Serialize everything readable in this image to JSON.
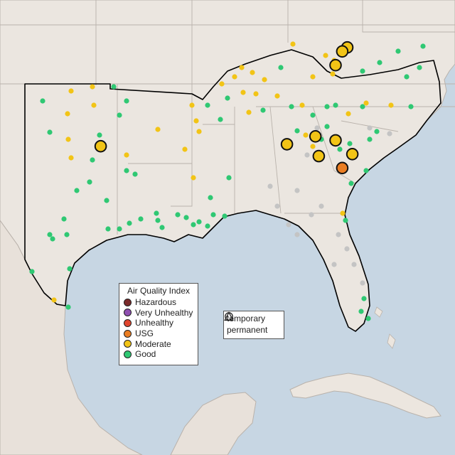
{
  "colors": {
    "water": "#c7d6e3",
    "land": "#ebe6e0",
    "land_border": "#b9b2ab",
    "region_outline": "#000000",
    "mexico_land": "#e8e1da",
    "cuba_land": "#ece6df"
  },
  "legend": {
    "title": "Air Quality Index",
    "categories": [
      {
        "label": "Hazardous",
        "color": "#7a2a2a"
      },
      {
        "label": "Very Unhealthy",
        "color": "#8e4fb0"
      },
      {
        "label": "Unhealthy",
        "color": "#e0452e"
      },
      {
        "label": "USG",
        "color": "#ea7d22"
      },
      {
        "label": "Moderate",
        "color": "#f2c416"
      },
      {
        "label": "Good",
        "color": "#2fc873"
      }
    ]
  },
  "monitor_legend": {
    "items": [
      {
        "label": "temporary",
        "shape": "circle"
      },
      {
        "label": "permanent",
        "shape": "triangle"
      }
    ]
  },
  "sensors": {
    "no_data_color": "#c4c4c4",
    "large_markers": [
      {
        "category": "Moderate",
        "lon": -83.3,
        "lat": 37.8
      },
      {
        "category": "Moderate",
        "lon": -83.6,
        "lat": 37.6
      },
      {
        "category": "Moderate",
        "lon": -84.0,
        "lat": 36.9
      },
      {
        "category": "Moderate",
        "lon": -98.0,
        "lat": 32.8
      },
      {
        "category": "Moderate",
        "lon": -85.2,
        "lat": 33.3
      },
      {
        "category": "Moderate",
        "lon": -86.9,
        "lat": 32.9
      },
      {
        "category": "Moderate",
        "lon": -84.0,
        "lat": 33.1
      },
      {
        "category": "Moderate",
        "lon": -85.0,
        "lat": 32.3
      },
      {
        "category": "Moderate",
        "lon": -83.0,
        "lat": 32.4
      },
      {
        "category": "USG",
        "lon": -83.6,
        "lat": 31.7
      }
    ]
  }
}
